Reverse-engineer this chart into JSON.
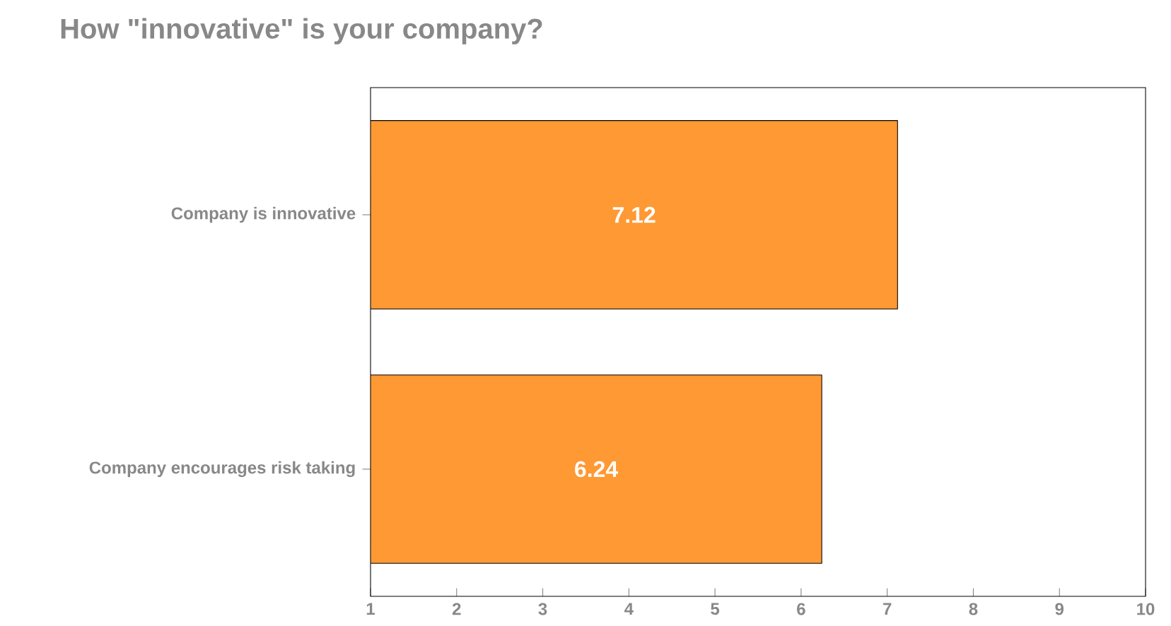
{
  "chart_data": {
    "type": "bar",
    "orientation": "horizontal",
    "title": "How \"innovative\" is your company?",
    "categories": [
      "Company is innovative",
      "Company encourages risk taking"
    ],
    "values": [
      7.12,
      6.24
    ],
    "color": "#ff9933",
    "xlim": [
      1,
      10
    ],
    "xticks": [
      1,
      2,
      3,
      4,
      5,
      6,
      7,
      8,
      9,
      10
    ],
    "data_labels": true
  }
}
